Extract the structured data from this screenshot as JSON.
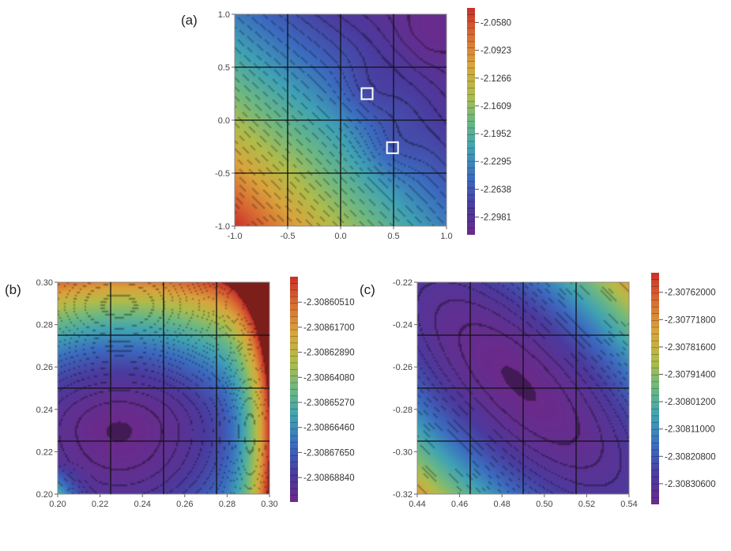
{
  "chart_data": [
    {
      "type": "heatmap",
      "panel_label": "(a)",
      "xlim": [
        -1.0,
        1.0
      ],
      "ylim": [
        -1.0,
        1.0
      ],
      "xticks": [
        "-1.0",
        "-0.5",
        "0.0",
        "0.5",
        "1.0"
      ],
      "yticks": [
        "1.0",
        "0.5",
        "0.0",
        "-0.5",
        "-1.0"
      ],
      "colorbar_ticks": [
        "-2.0580",
        "-2.0923",
        "-2.1266",
        "-2.1609",
        "-2.1952",
        "-2.2295",
        "-2.2638",
        "-2.2981"
      ],
      "colorbar_range": [
        -2.32,
        -2.04
      ],
      "grid": true,
      "markers": [
        {
          "x": 0.25,
          "y": 0.25
        },
        {
          "x": 0.49,
          "y": -0.26
        }
      ],
      "surface": {
        "max_corner": "bottom-left",
        "min_corner": "top-right",
        "saddle_minima": [
          [
            0.25,
            0.25
          ],
          [
            0.49,
            -0.26
          ]
        ]
      }
    },
    {
      "type": "heatmap",
      "panel_label": "(b)",
      "xlim": [
        0.2,
        0.3
      ],
      "ylim": [
        0.2,
        0.3
      ],
      "xticks": [
        "0.20",
        "0.22",
        "0.24",
        "0.26",
        "0.28",
        "0.30"
      ],
      "yticks": [
        "0.30",
        "0.28",
        "0.26",
        "0.24",
        "0.22",
        "0.20"
      ],
      "colorbar_ticks": [
        "-2.30860510",
        "-2.30861700",
        "-2.30862890",
        "-2.30864080",
        "-2.30865270",
        "-2.30866460",
        "-2.30867650",
        "-2.30868840"
      ],
      "colorbar_range": [
        -2.3087,
        -2.308593
      ],
      "grid": true,
      "minimum": {
        "x": 0.229,
        "y": 0.23
      }
    },
    {
      "type": "heatmap",
      "panel_label": "(c)",
      "xlim": [
        0.44,
        0.54
      ],
      "ylim": [
        -0.32,
        -0.22
      ],
      "xticks": [
        "0.44",
        "0.46",
        "0.48",
        "0.50",
        "0.52",
        "0.54"
      ],
      "yticks": [
        "-0.22",
        "-0.24",
        "-0.26",
        "-0.28",
        "-0.30",
        "-0.32"
      ],
      "colorbar_ticks": [
        "-2.30762000",
        "-2.30771800",
        "-2.30781600",
        "-2.30791400",
        "-2.30801200",
        "-2.30811000",
        "-2.30820800",
        "-2.30830600"
      ],
      "colorbar_range": [
        -2.30838,
        -2.30755
      ],
      "grid": true,
      "minimum": {
        "x": 0.488,
        "y": -0.268
      }
    }
  ],
  "palette": [
    "#6b2a8a",
    "#4b3a9e",
    "#3b6bc0",
    "#3fa2b5",
    "#6cb882",
    "#b0bc4a",
    "#d9a43c",
    "#d96c33",
    "#c8302a"
  ]
}
